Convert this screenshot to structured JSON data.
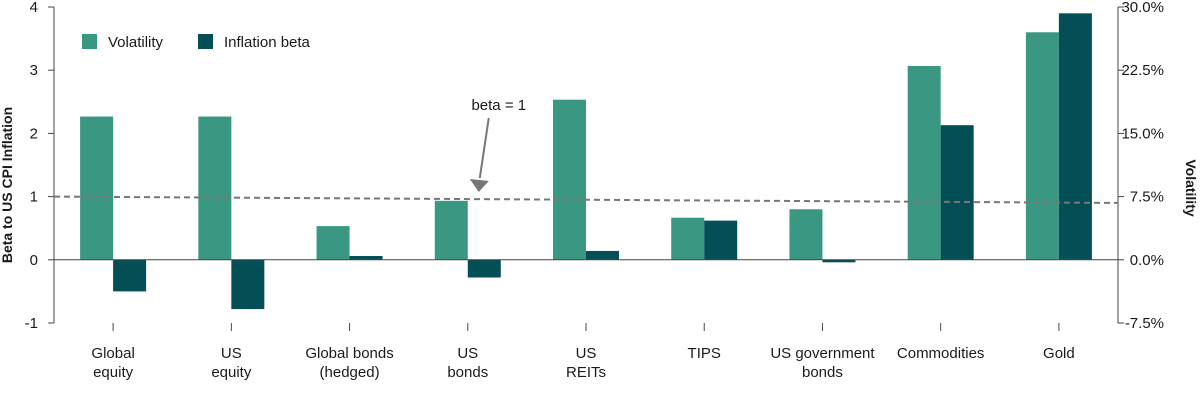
{
  "chart_data": {
    "type": "bar",
    "categories": [
      [
        "Global",
        "equity"
      ],
      [
        "US",
        "equity"
      ],
      [
        "Global bonds",
        "(hedged)"
      ],
      [
        "US",
        "bonds"
      ],
      [
        "US",
        "REITs"
      ],
      [
        "TIPS"
      ],
      [
        "US government",
        "bonds"
      ],
      [
        "Commodities"
      ],
      [
        "Gold"
      ]
    ],
    "series": [
      {
        "name": "Volatility",
        "axis": "right",
        "color": "#3a9882",
        "values": [
          17.0,
          17.0,
          4.0,
          7.0,
          19.0,
          5.0,
          6.0,
          23.0,
          27.0
        ]
      },
      {
        "name": "Inflation beta",
        "axis": "left",
        "color": "#034f55",
        "values": [
          -0.5,
          -0.78,
          0.06,
          -0.28,
          0.14,
          0.62,
          -0.04,
          2.13,
          3.9
        ]
      }
    ],
    "left_axis": {
      "label": "Beta to US CPI Inflation",
      "ylim": [
        -1,
        4
      ],
      "ticks": [
        "-1",
        "0",
        "1",
        "2",
        "3",
        "4"
      ]
    },
    "right_axis": {
      "label": "Volatility",
      "ylim": [
        -7.5,
        30
      ],
      "ticks": [
        "-7.5%",
        "0.0%",
        "7.5%",
        "15.0%",
        "22.5%",
        "30.0%"
      ]
    },
    "reference_line": {
      "y_start": 1.0,
      "y_end": 0.9
    },
    "annotation": {
      "text": "beta = 1"
    },
    "legend": {
      "placement": "top-left"
    },
    "grid": false
  }
}
